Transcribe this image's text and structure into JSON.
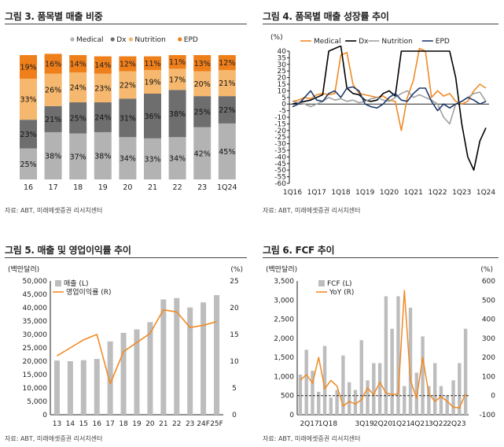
{
  "panels": {
    "p1": {
      "title": "그림 3. 품목별 매출 비중",
      "source": "자료: ABT, 미래에셋증권 리서치센터"
    },
    "p2": {
      "title": "그림 4. 품목별 매출 성장률 추이",
      "source": "자료: ABT, 미래에셋증권 리서치센터"
    },
    "p3": {
      "title": "그림 5. 매출 및 영업이익률 추이",
      "source": "자료: ABT, 미래에셋증권 리서치센터"
    },
    "p4": {
      "title": "그림 6. FCF 추이",
      "source": "자료: ABT, 미래에셋증권 리서치센터"
    }
  },
  "colors": {
    "medical": "#b3b3b3",
    "dx": "#6e6e6e",
    "nutrition": "#f6b86e",
    "epd": "#ef7f1a",
    "line_orange": "#f08a24",
    "line_black": "#000000",
    "line_gray": "#a0a0a0",
    "line_navy": "#1f3b6e",
    "bar_gray": "#bdbdbd"
  },
  "chart_data": [
    {
      "type": "bar",
      "stacked": true,
      "categories": [
        "16",
        "17",
        "18",
        "19",
        "20",
        "21",
        "22",
        "23",
        "1Q24"
      ],
      "series": [
        {
          "name": "Medical",
          "values": [
            25,
            38,
            37,
            38,
            34,
            33,
            34,
            42,
            45
          ],
          "labels": [
            "25%",
            "38%",
            "37%",
            "38%",
            "34%",
            "33%",
            "34%",
            "42%",
            "45%"
          ]
        },
        {
          "name": "Dx",
          "values": [
            23,
            21,
            25,
            24,
            31,
            36,
            38,
            25,
            22
          ],
          "labels": [
            "23%",
            "21%",
            "25%",
            "24%",
            "31%",
            "36%",
            "38%",
            "25%",
            "22%"
          ]
        },
        {
          "name": "Nutrition",
          "values": [
            33,
            26,
            24,
            23,
            22,
            19,
            17,
            20,
            21
          ],
          "labels": [
            "33%",
            "26%",
            "24%",
            "23%",
            "22%",
            "19%",
            "17%",
            "20%",
            "21%"
          ]
        },
        {
          "name": "EPD",
          "values": [
            19,
            16,
            14,
            14,
            12,
            11,
            11,
            13,
            12
          ],
          "labels": [
            "19%",
            "16%",
            "14%",
            "14%",
            "12%",
            "11%",
            "11%",
            "13%",
            "12%"
          ]
        }
      ],
      "ylim": [
        0,
        100
      ]
    },
    {
      "type": "line",
      "x": [
        "1Q16",
        "2Q16",
        "3Q16",
        "4Q16",
        "1Q17",
        "2Q17",
        "3Q17",
        "4Q17",
        "1Q18",
        "2Q18",
        "3Q18",
        "4Q18",
        "1Q19",
        "2Q19",
        "3Q19",
        "4Q19",
        "1Q20",
        "2Q20",
        "3Q20",
        "4Q20",
        "1Q21",
        "2Q21",
        "3Q21",
        "4Q21",
        "1Q22",
        "2Q22",
        "3Q22",
        "4Q22",
        "1Q23",
        "2Q23",
        "3Q23",
        "4Q23",
        "1Q24"
      ],
      "x_tick_labels": [
        "1Q16",
        "1Q17",
        "1Q18",
        "1Q19",
        "1Q20",
        "1Q21",
        "1Q22",
        "1Q23",
        "1Q24"
      ],
      "unit_label": "(%)",
      "y_ticks": [
        "40",
        "35",
        "30",
        "25",
        "20",
        "15",
        "10",
        "5",
        "0",
        "-5",
        "-10",
        "-15",
        "-20",
        "-25",
        "-30",
        "-35",
        "-40",
        "-45",
        "-50",
        "-55",
        "-60"
      ],
      "ylim": [
        -60,
        40
      ],
      "series": [
        {
          "name": "Medical",
          "values": [
            2,
            3,
            5,
            4,
            7,
            8,
            7,
            8,
            37,
            39,
            15,
            8,
            7,
            6,
            5,
            6,
            3,
            2,
            -20,
            5,
            18,
            42,
            40,
            5,
            10,
            6,
            8,
            2,
            0,
            2,
            10,
            15,
            12
          ]
        },
        {
          "name": "Dx",
          "values": [
            0,
            1,
            2,
            3,
            5,
            7,
            40,
            42,
            44,
            12,
            8,
            7,
            3,
            2,
            3,
            8,
            10,
            6,
            40,
            40,
            40,
            40,
            40,
            40,
            40,
            40,
            40,
            20,
            -15,
            -40,
            -50,
            -28,
            -18
          ]
        },
        {
          "name": "Nutrition",
          "values": [
            2,
            1,
            0,
            -2,
            0,
            2,
            5,
            3,
            4,
            2,
            3,
            1,
            2,
            4,
            5,
            3,
            2,
            5,
            8,
            10,
            5,
            7,
            5,
            3,
            0,
            -10,
            -15,
            0,
            2,
            5,
            8,
            9,
            2
          ]
        },
        {
          "name": "EPD",
          "values": [
            -2,
            0,
            5,
            10,
            3,
            2,
            8,
            10,
            5,
            12,
            13,
            10,
            0,
            -2,
            -3,
            0,
            5,
            8,
            3,
            2,
            8,
            12,
            12,
            2,
            -5,
            0,
            -3,
            0,
            2,
            5,
            3,
            0,
            2
          ]
        }
      ]
    },
    {
      "type": "bar",
      "x": [
        "13",
        "14",
        "15",
        "16",
        "17",
        "18",
        "19",
        "20",
        "21",
        "22",
        "23",
        "24F",
        "25F"
      ],
      "x_tick_labels": [
        "13",
        "14",
        "15",
        "16",
        "17",
        "18",
        "19",
        "20",
        "21",
        "22",
        "23",
        "24F",
        "25F"
      ],
      "left_unit_label": "(백만달러)",
      "right_unit_label": "(%)",
      "left_ticks": [
        "50,000",
        "45,000",
        "40,000",
        "35,000",
        "30,000",
        "25,000",
        "20,000",
        "15,000",
        "10,000",
        "5,000",
        "0"
      ],
      "right_ticks": [
        "25",
        "20",
        "15",
        "10",
        "5",
        "0"
      ],
      "ylim": [
        0,
        50000
      ],
      "y2lim": [
        0,
        25
      ],
      "series": [
        {
          "name": "매출 (L)",
          "type": "bar",
          "axis": "left",
          "values": [
            20250,
            20000,
            20400,
            20850,
            27400,
            30600,
            31900,
            34600,
            43100,
            43600,
            40100,
            42000,
            44700
          ]
        },
        {
          "name": "영업이익률 (R)",
          "type": "line",
          "axis": "right",
          "values": [
            11.0,
            12.5,
            14.0,
            15.0,
            5.8,
            11.8,
            13.5,
            15.2,
            19.6,
            19.2,
            16.3,
            16.7,
            17.4
          ]
        }
      ]
    },
    {
      "type": "bar",
      "x": [
        "2Q17",
        "3Q17",
        "4Q17",
        "1Q18",
        "2Q18",
        "3Q18",
        "4Q18",
        "1Q19",
        "2Q19",
        "3Q19",
        "4Q19",
        "1Q20",
        "2Q20",
        "3Q20",
        "4Q20",
        "1Q21",
        "2Q21",
        "3Q21",
        "4Q21",
        "1Q22",
        "2Q22",
        "3Q22",
        "4Q22",
        "1Q23",
        "2Q23",
        "3Q23",
        "4Q23",
        "1Q24"
      ],
      "x_tick_labels": [
        "2Q17",
        "1Q18",
        "3Q19",
        "2Q20",
        "1Q21",
        "4Q21",
        "3Q22",
        "2Q23"
      ],
      "left_unit_label": "(백만달러)",
      "right_unit_label": "(%)",
      "left_ticks": [
        "3,500",
        "3,000",
        "2,500",
        "2,000",
        "1,500",
        "1,000",
        "500",
        "0"
      ],
      "right_ticks": [
        "600",
        "500",
        "400",
        "300",
        "200",
        "100",
        "0",
        "-100"
      ],
      "ylim": [
        0,
        3500
      ],
      "y2lim": [
        -100,
        600
      ],
      "reference_line": {
        "axis": "right",
        "value": 0,
        "style": "dashed"
      },
      "series": [
        {
          "name": "FCF (L)",
          "type": "bar",
          "axis": "left",
          "values": [
            1050,
            1700,
            1150,
            600,
            1800,
            450,
            650,
            1550,
            850,
            650,
            1950,
            900,
            1350,
            1350,
            3100,
            2250,
            3100,
            750,
            2800,
            1100,
            2050,
            750,
            1350,
            750,
            500,
            900,
            1350,
            2250
          ]
        },
        {
          "name": "YoY (R)",
          "type": "line",
          "axis": "right",
          "values": [
            80,
            110,
            65,
            200,
            35,
            80,
            50,
            -55,
            -30,
            -45,
            -20,
            40,
            5,
            70,
            15,
            5,
            10,
            550,
            80,
            -15,
            200,
            10,
            -30,
            -5,
            -30,
            -60,
            -65,
            10
          ]
        }
      ]
    }
  ]
}
